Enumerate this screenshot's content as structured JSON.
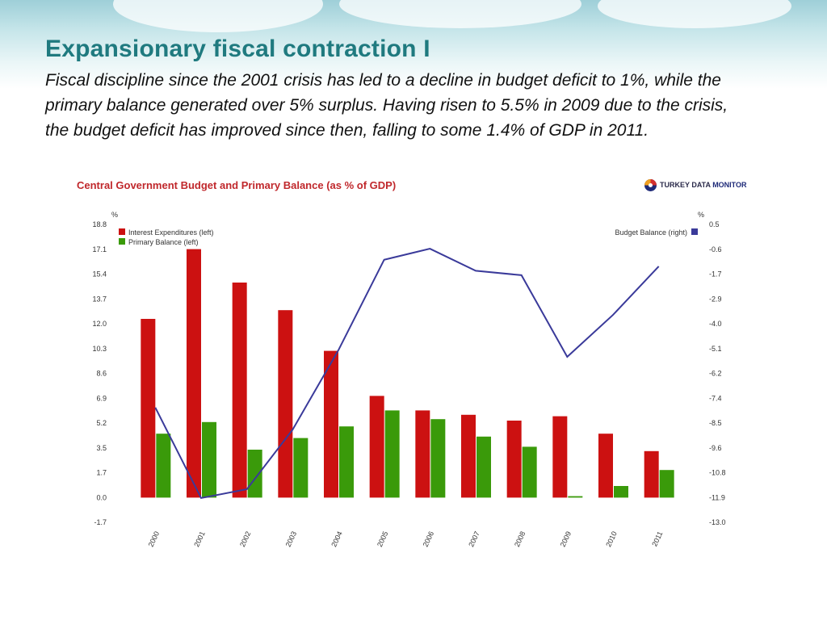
{
  "slide": {
    "title": "Expansionary fiscal contraction I",
    "subtitle": "Fiscal discipline since the 2001 crisis has led to a decline in budget deficit to 1%, while the primary balance generated over 5% surplus. Having risen to 5.5% in 2009 due to the crisis, the budget deficit has improved since then, falling to some 1.4% of GDP in 2011."
  },
  "logo": {
    "name_part1": "TURKEY DATA",
    "name_part2": "MONITOR",
    "icon": "globe-icon"
  },
  "chart_data": {
    "type": "bar",
    "title": "Central Government Budget and Primary Balance (as % of GDP)",
    "categories": [
      "2000",
      "2001",
      "2002",
      "2003",
      "2004",
      "2005",
      "2006",
      "2007",
      "2008",
      "2009",
      "2010",
      "2011"
    ],
    "left_axis": {
      "unit": "%",
      "ticks": [
        "18.8",
        "17.1",
        "15.4",
        "13.7",
        "12.0",
        "10.3",
        "8.6",
        "6.9",
        "5.2",
        "3.5",
        "1.7",
        "0.0",
        "-1.7"
      ],
      "range": [
        -1.7,
        18.8
      ]
    },
    "right_axis": {
      "unit": "%",
      "ticks": [
        "0.5",
        "-0.6",
        "-1.7",
        "-2.9",
        "-4.0",
        "-5.1",
        "-6.2",
        "-7.4",
        "-8.5",
        "-9.6",
        "-10.8",
        "-11.9",
        "-13.0"
      ],
      "range": [
        -13.0,
        0.5
      ]
    },
    "series": [
      {
        "name": "Interest Expenditures (left)",
        "type": "bar",
        "axis": "left",
        "color": "#cc1111",
        "values": [
          12.3,
          17.1,
          14.8,
          12.9,
          10.1,
          7.0,
          6.0,
          5.7,
          5.3,
          5.6,
          4.4,
          3.2
        ]
      },
      {
        "name": "Primary Balance (left)",
        "type": "bar",
        "axis": "left",
        "color": "#3a9a0a",
        "values": [
          4.4,
          5.2,
          3.3,
          4.1,
          4.9,
          6.0,
          5.4,
          4.2,
          3.5,
          0.1,
          0.8,
          1.9
        ]
      },
      {
        "name": "Budget Balance (right)",
        "type": "line",
        "axis": "right",
        "color": "#3a3a9a",
        "values": [
          -7.8,
          -11.9,
          -11.5,
          -8.8,
          -5.2,
          -1.1,
          -0.6,
          -1.6,
          -1.8,
          -5.5,
          -3.6,
          -1.4
        ]
      }
    ],
    "legend_left": "top-left",
    "legend_right": "top-right",
    "grid": false
  }
}
